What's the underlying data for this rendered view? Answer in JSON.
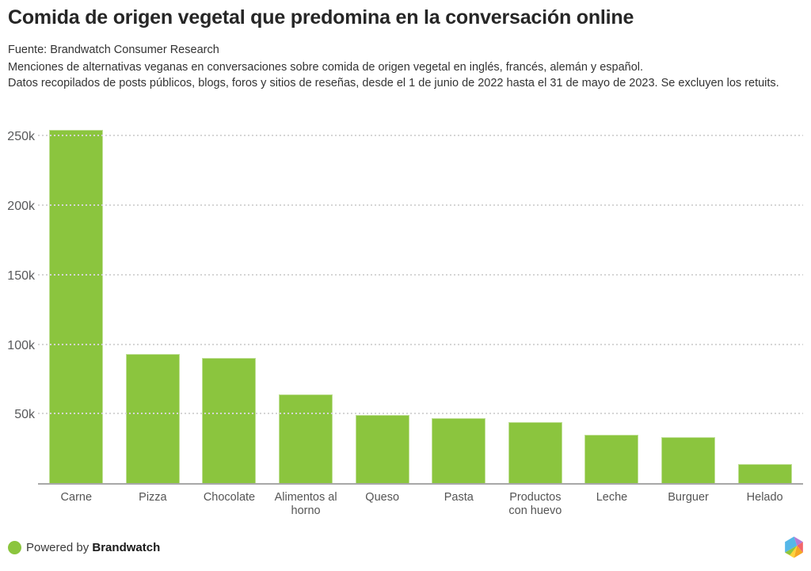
{
  "header": {
    "title": "Comida de origen vegetal que predomina en la conversación online",
    "source": "Fuente: Brandwatch Consumer Research",
    "description_line1": "Menciones de alternativas veganas en conversaciones sobre comida de origen vegetal en inglés, francés, alemán y español.",
    "description_line2": "Datos recopilados de posts públicos, blogs, foros y sitios de reseñas, desde el 1 de junio de 2022 hasta el 31 de mayo de 2023. Se excluyen los retuits."
  },
  "chart_data": {
    "type": "bar",
    "title": "Comida de origen vegetal que predomina en la conversación online",
    "categories": [
      "Carne",
      "Pizza",
      "Chocolate",
      "Alimentos al horno",
      "Queso",
      "Pasta",
      "Productos con huevo",
      "Leche",
      "Burguer",
      "Helado"
    ],
    "values": [
      254000,
      93000,
      90000,
      64000,
      49000,
      47000,
      44000,
      35000,
      33000,
      13500
    ],
    "xlabel": "",
    "ylabel": "",
    "ylim": [
      0,
      263000
    ],
    "yticks": [
      50000,
      100000,
      150000,
      200000,
      250000
    ],
    "ytick_labels": [
      "50k",
      "100k",
      "150k",
      "200k",
      "250k"
    ],
    "grid": "horizontal-dashed",
    "legend": "none",
    "bar_color": "#8bc53e"
  },
  "footer": {
    "powered_by_prefix": "Powered by ",
    "brand": "Brandwatch"
  },
  "colors": {
    "bar_green": "#8bc53e",
    "axis_line": "#a8a8a8",
    "gridline": "#d5d5d5",
    "tick_text": "#58595b",
    "title_text": "#262626",
    "logo_blue": "#55b7e8",
    "logo_purple": "#b57bd5",
    "logo_red": "#f3656a",
    "logo_orange": "#f5a623",
    "logo_yellow": "#ffd23b",
    "logo_green": "#8dc63f"
  }
}
